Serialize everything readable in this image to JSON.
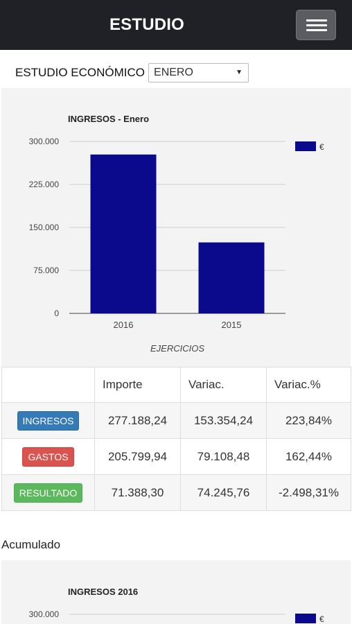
{
  "header": {
    "title": "ESTUDIO",
    "menu_icon": "hamburger-icon"
  },
  "selector": {
    "label": "ESTUDIO ECONÓMICO",
    "value": "ENERO"
  },
  "chart_data": [
    {
      "type": "bar",
      "title": "INGRESOS - Enero",
      "categories": [
        "2016",
        "2015"
      ],
      "series": [
        {
          "name": "€",
          "values": [
            277188.24,
            123834.0
          ],
          "color": "#0b0a8c"
        }
      ],
      "xlabel": "EJERCICIOS",
      "ylabel": "",
      "yticks": [
        "0",
        "75.000",
        "150.000",
        "225.000",
        "300.000"
      ],
      "ylim": [
        0,
        300000
      ],
      "legend_position": "top-right",
      "grid": true
    },
    {
      "type": "bar",
      "title": "INGRESOS 2016",
      "series": [
        {
          "name": "€",
          "values": []
        }
      ],
      "yticks": [
        "300.000"
      ],
      "ylim": [
        0,
        300000
      ],
      "legend_position": "top-right"
    }
  ],
  "table": {
    "headers": [
      "",
      "Importe",
      "Variac.",
      "Variac.%"
    ],
    "rows": [
      {
        "label": "INGRESOS",
        "color": "#337ab7",
        "importe": "277.188,24",
        "variac": "153.354,24",
        "variac_pct": "223,84%"
      },
      {
        "label": "GASTOS",
        "color": "#d9534f",
        "importe": "205.799,94",
        "variac": "79.108,48",
        "variac_pct": "162,44%"
      },
      {
        "label": "RESULTADO",
        "color": "#5cb85c",
        "importe": "71.388,30",
        "variac": "74.245,76",
        "variac_pct": "-2.498,31%"
      }
    ]
  },
  "acumulado_label": "Acumulado"
}
